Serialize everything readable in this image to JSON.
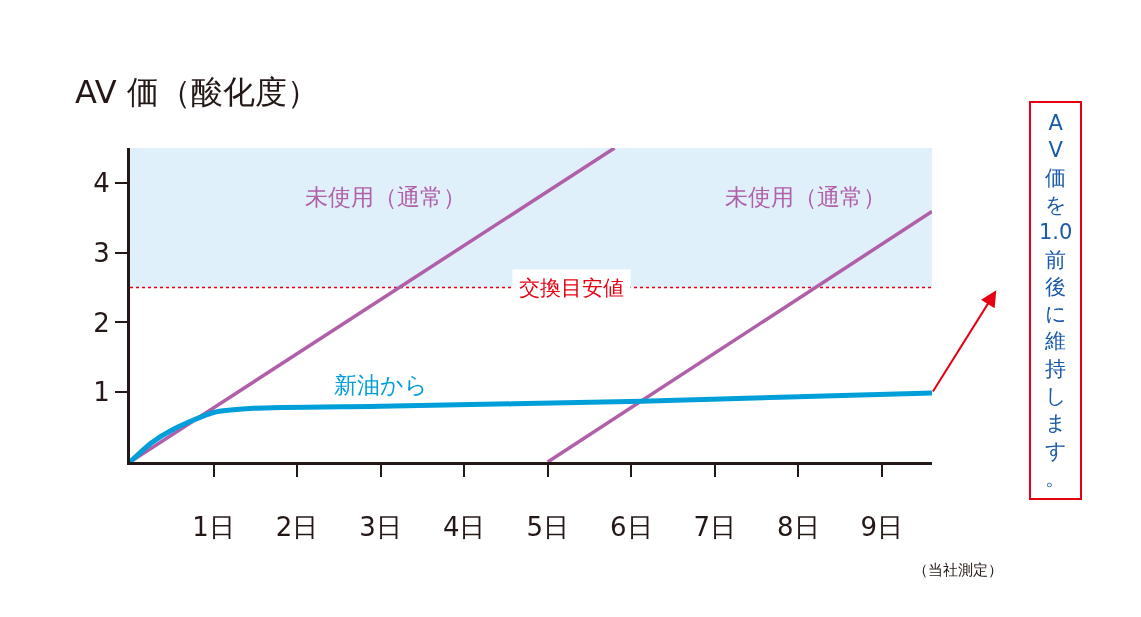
{
  "chart_data": {
    "type": "line",
    "title": "AV 価（酸化度）",
    "series": [
      {
        "name": "未使用（通常）",
        "color": "#b05fa8",
        "x": [
          0,
          5.8
        ],
        "values": [
          0,
          4.5
        ]
      },
      {
        "name": "未使用（通常）",
        "color": "#b05fa8",
        "x": [
          5.0,
          9.6
        ],
        "values": [
          0,
          3.59
        ]
      },
      {
        "name": "新油から",
        "color": "#009fd9",
        "x": [
          0,
          0.25,
          0.52,
          1.0,
          1.48,
          3.0,
          6.12,
          9.6
        ],
        "values": [
          0,
          0.27,
          0.47,
          0.71,
          0.77,
          0.8,
          0.87,
          0.99
        ]
      }
    ],
    "xlim": [
      0,
      9.6
    ],
    "ylim": [
      0,
      4.5
    ],
    "xticks": [
      {
        "value": 1,
        "label": "1日"
      },
      {
        "value": 2,
        "label": "2日"
      },
      {
        "value": 3,
        "label": "3日"
      },
      {
        "value": 4,
        "label": "4日"
      },
      {
        "value": 5,
        "label": "5日"
      },
      {
        "value": 6,
        "label": "6日"
      },
      {
        "value": 7,
        "label": "7日"
      },
      {
        "value": 8,
        "label": "8日"
      },
      {
        "value": 9,
        "label": "9日"
      }
    ],
    "yticks": [
      1,
      2,
      3,
      4
    ],
    "ref_lines": [
      {
        "axis": "y",
        "value": 2.5,
        "label": "交換目安値",
        "color": "#e60012",
        "line_style": "dotted"
      }
    ],
    "bands": [
      {
        "axis": "y",
        "from": 2.5,
        "to": 4.5,
        "color": "#dff0fa"
      }
    ],
    "annotations": [
      "（当社測定）",
      "AV価を1.0前後に維持します。"
    ],
    "marker": "none",
    "line_style": "solid"
  }
}
